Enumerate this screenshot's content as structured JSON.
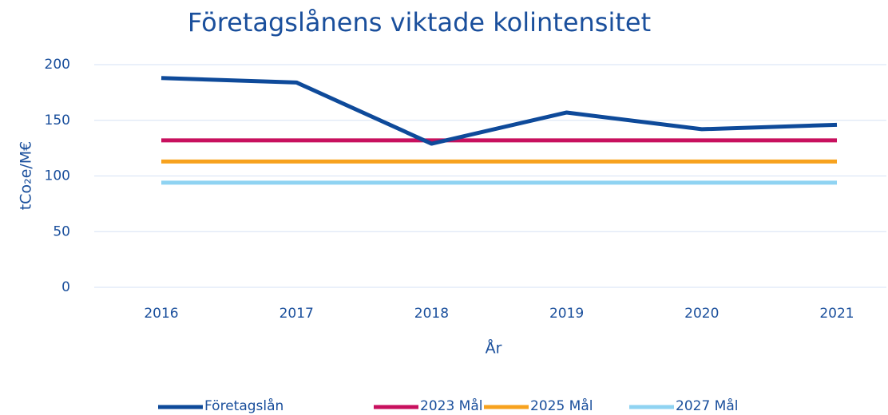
{
  "chart_data": {
    "type": "line",
    "title": "Företagslånens viktade kolintensitet",
    "x_label": "År",
    "y_label": "tCo₂e/M€",
    "categories": [
      "2016",
      "2017",
      "2018",
      "2019",
      "2020",
      "2021"
    ],
    "series": [
      {
        "name": "Företagslån",
        "color": "#0e4a9a",
        "values": [
          188,
          184,
          129,
          157,
          142,
          146
        ]
      },
      {
        "name": "2023 Mål",
        "color": "#c8105e",
        "values": [
          132,
          132,
          132,
          132,
          132,
          132
        ]
      },
      {
        "name": "2025 Mål",
        "color": "#f7a21e",
        "values": [
          113,
          113,
          113,
          113,
          113,
          113
        ]
      },
      {
        "name": "2027 Mål",
        "color": "#8fd3f2",
        "values": [
          94,
          94,
          94,
          94,
          94,
          94
        ]
      }
    ],
    "ylim": [
      0,
      200
    ],
    "yticks": [
      0,
      50,
      100,
      150,
      200
    ],
    "grid": true,
    "legend": "bottom"
  }
}
